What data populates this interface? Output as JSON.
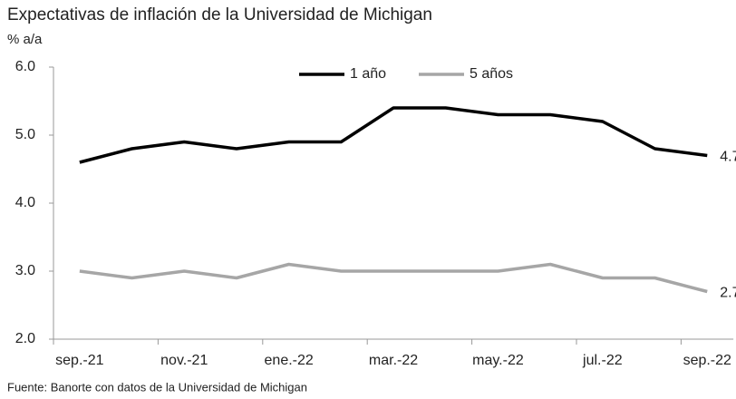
{
  "chart_data": {
    "type": "line",
    "title": "Expectativas de inflación de la Universidad de Michigan",
    "y_label": "% a/a",
    "source": "Fuente: Banorte con datos de la Universidad de Michigan",
    "categories": [
      "sep.-21",
      null,
      "nov.-21",
      null,
      "ene.-22",
      null,
      "mar.-22",
      null,
      "may.-22",
      null,
      "jul.-22",
      null,
      "sep.-22"
    ],
    "series": [
      {
        "name": "1 año",
        "color": "#000000",
        "values": [
          4.6,
          4.8,
          4.9,
          4.8,
          4.9,
          4.9,
          5.4,
          5.4,
          5.3,
          5.3,
          5.2,
          4.8,
          4.7
        ]
      },
      {
        "name": "5 años",
        "color": "#a6a6a6",
        "values": [
          3.0,
          2.9,
          3.0,
          2.9,
          3.1,
          3.0,
          3.0,
          3.0,
          3.0,
          3.1,
          2.9,
          2.9,
          2.7
        ]
      }
    ],
    "ylim": [
      2,
      6
    ],
    "yticks": [
      {
        "value": 2,
        "label": "2.0"
      },
      {
        "value": 3,
        "label": "3.0"
      },
      {
        "value": 4,
        "label": "4.0"
      },
      {
        "value": 5,
        "label": "5.0"
      },
      {
        "value": 6,
        "label": "6.0"
      }
    ],
    "grid": false,
    "legend": "top"
  }
}
